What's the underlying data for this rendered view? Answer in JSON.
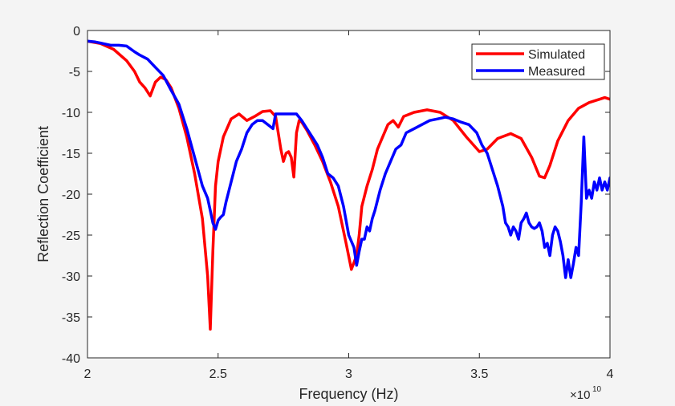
{
  "chart_data": {
    "type": "line",
    "title": "",
    "xlabel": "Frequency (Hz)",
    "ylabel": "Reflection Coefficient",
    "x_exponent_label": "×10",
    "x_exponent_power": "10",
    "xlim": [
      20000000000.0,
      40000000000.0
    ],
    "ylim": [
      -40,
      0
    ],
    "xticks": [
      2,
      2.5,
      3,
      3.5,
      4
    ],
    "xtick_labels": [
      "2",
      "2.5",
      "3",
      "3.5",
      "4"
    ],
    "yticks": [
      0,
      -5,
      -10,
      -15,
      -20,
      -25,
      -30,
      -35,
      -40
    ],
    "ytick_labels": [
      "0",
      "-5",
      "-10",
      "-15",
      "-20",
      "-25",
      "-30",
      "-35",
      "-40"
    ],
    "grid": false,
    "legend_position": "northeast",
    "x_units_note": "x values in units of 1e10 Hz",
    "series": [
      {
        "name": "Simulated",
        "color": "#ff0000",
        "x": [
          2.0,
          2.05,
          2.1,
          2.15,
          2.18,
          2.2,
          2.22,
          2.24,
          2.26,
          2.28,
          2.3,
          2.32,
          2.35,
          2.38,
          2.41,
          2.44,
          2.46,
          2.47,
          2.48,
          2.49,
          2.5,
          2.52,
          2.55,
          2.58,
          2.61,
          2.64,
          2.67,
          2.7,
          2.72,
          2.74,
          2.75,
          2.76,
          2.77,
          2.78,
          2.79,
          2.8,
          2.81,
          2.82,
          2.84,
          2.87,
          2.9,
          2.93,
          2.96,
          2.99,
          3.01,
          3.03,
          3.04,
          3.05,
          3.07,
          3.09,
          3.11,
          3.13,
          3.15,
          3.17,
          3.19,
          3.21,
          3.25,
          3.3,
          3.35,
          3.4,
          3.45,
          3.5,
          3.53,
          3.57,
          3.62,
          3.66,
          3.7,
          3.73,
          3.75,
          3.77,
          3.8,
          3.84,
          3.88,
          3.92,
          3.96,
          3.98,
          4.0
        ],
        "values": [
          -1.3,
          -1.6,
          -2.3,
          -3.7,
          -5.0,
          -6.3,
          -7.0,
          -8.0,
          -6.3,
          -5.7,
          -6.0,
          -7.0,
          -9.5,
          -13.0,
          -17.5,
          -23.0,
          -30.0,
          -36.5,
          -27.0,
          -19.0,
          -16.0,
          -13.0,
          -10.8,
          -10.2,
          -11.0,
          -10.5,
          -9.9,
          -9.8,
          -10.5,
          -14.5,
          -16.0,
          -15.0,
          -14.8,
          -15.5,
          -17.9,
          -12.5,
          -11.0,
          -11.2,
          -12.2,
          -14.0,
          -16.0,
          -18.5,
          -21.5,
          -26.0,
          -29.2,
          -27.5,
          -25.0,
          -21.5,
          -19.0,
          -17.0,
          -14.5,
          -13.0,
          -11.5,
          -11.0,
          -11.8,
          -10.5,
          -10.0,
          -9.7,
          -10.0,
          -11.0,
          -13.0,
          -14.8,
          -14.5,
          -13.2,
          -12.6,
          -13.2,
          -15.5,
          -17.8,
          -18.0,
          -16.5,
          -13.5,
          -11.0,
          -9.5,
          -8.8,
          -8.4,
          -8.2,
          -8.4
        ]
      },
      {
        "name": "Measured",
        "color": "#0000ff",
        "x": [
          2.0,
          2.03,
          2.06,
          2.09,
          2.12,
          2.15,
          2.18,
          2.2,
          2.23,
          2.26,
          2.29,
          2.32,
          2.35,
          2.38,
          2.41,
          2.44,
          2.46,
          2.47,
          2.48,
          2.49,
          2.5,
          2.51,
          2.52,
          2.53,
          2.55,
          2.57,
          2.59,
          2.61,
          2.63,
          2.65,
          2.67,
          2.69,
          2.71,
          2.72,
          2.74,
          2.76,
          2.78,
          2.8,
          2.82,
          2.84,
          2.86,
          2.88,
          2.9,
          2.92,
          2.94,
          2.96,
          2.98,
          3.0,
          3.02,
          3.03,
          3.04,
          3.05,
          3.06,
          3.07,
          3.08,
          3.09,
          3.1,
          3.12,
          3.14,
          3.16,
          3.18,
          3.2,
          3.22,
          3.25,
          3.28,
          3.31,
          3.34,
          3.37,
          3.4,
          3.43,
          3.46,
          3.49,
          3.51,
          3.53,
          3.55,
          3.57,
          3.59,
          3.6,
          3.61,
          3.62,
          3.63,
          3.64,
          3.65,
          3.66,
          3.67,
          3.68,
          3.69,
          3.7,
          3.71,
          3.72,
          3.73,
          3.74,
          3.75,
          3.76,
          3.77,
          3.78,
          3.79,
          3.8,
          3.81,
          3.82,
          3.83,
          3.84,
          3.85,
          3.86,
          3.87,
          3.88,
          3.89,
          3.9,
          3.91,
          3.92,
          3.93,
          3.94,
          3.95,
          3.96,
          3.97,
          3.98,
          3.99,
          4.0
        ],
        "values": [
          -1.3,
          -1.4,
          -1.6,
          -1.8,
          -1.8,
          -1.9,
          -2.6,
          -3.0,
          -3.5,
          -4.5,
          -5.5,
          -7.3,
          -9.0,
          -12.0,
          -15.5,
          -19.0,
          -20.5,
          -22.0,
          -23.5,
          -24.3,
          -23.2,
          -22.8,
          -22.5,
          -21.0,
          -18.5,
          -16.0,
          -14.5,
          -12.5,
          -11.5,
          -11.0,
          -11.0,
          -11.5,
          -12.0,
          -10.2,
          -10.2,
          -10.2,
          -10.2,
          -10.2,
          -11.0,
          -12.0,
          -13.0,
          -14.0,
          -15.5,
          -17.5,
          -18.0,
          -19.0,
          -21.5,
          -25.0,
          -26.5,
          -28.7,
          -27.0,
          -25.5,
          -25.5,
          -24.0,
          -24.5,
          -23.0,
          -22.0,
          -19.5,
          -17.5,
          -16.0,
          -14.5,
          -14.0,
          -12.5,
          -12.0,
          -11.5,
          -11.0,
          -10.8,
          -10.6,
          -10.8,
          -11.2,
          -11.5,
          -12.5,
          -14.0,
          -15.0,
          -17.0,
          -19.0,
          -21.5,
          -23.5,
          -24.0,
          -25.0,
          -24.0,
          -24.5,
          -25.5,
          -23.5,
          -23.0,
          -22.3,
          -23.5,
          -24.0,
          -24.2,
          -24.0,
          -23.5,
          -24.5,
          -26.5,
          -26.0,
          -27.5,
          -25.0,
          -24.0,
          -24.5,
          -25.8,
          -27.5,
          -30.2,
          -28.0,
          -30.2,
          -28.5,
          -26.5,
          -27.5,
          -21.0,
          -13.0,
          -20.5,
          -19.5,
          -20.5,
          -18.5,
          -19.5,
          -18.0,
          -19.5,
          -18.5,
          -19.5,
          -18.0
        ]
      }
    ]
  }
}
